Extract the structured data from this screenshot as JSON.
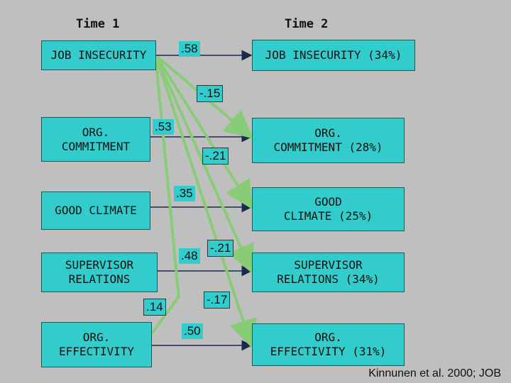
{
  "headers": {
    "time1": "Time 1",
    "time2": "Time 2"
  },
  "time1_boxes": {
    "job_insecurity": "JOB INSECURITY",
    "org_commitment": "ORG.\nCOMMITMENT",
    "good_climate": "GOOD CLIMATE",
    "supervisor_relations": "SUPERVISOR\nRELATIONS",
    "org_effectivity": "ORG.\nEFFECTIVITY"
  },
  "time2_boxes": {
    "job_insecurity": "JOB INSECURITY (34%)",
    "org_commitment": "ORG.\nCOMMITMENT (28%)",
    "good_climate": "GOOD\nCLIMATE (25%)",
    "supervisor_relations": "SUPERVISOR\nRELATIONS (34%)",
    "org_effectivity": "ORG.\nEFFECTIVITY (31%)"
  },
  "coefficients": {
    "ji_ji": ".58",
    "ji_oc": "-.15",
    "oc_oc": ".53",
    "ji_gc": "-.21",
    "gc_gc": ".35",
    "sr_sr": ".48",
    "ji_sr": "-.21",
    "oe_oe_side": ".14",
    "ji_oe": "-.17",
    "oe_oe": ".50"
  },
  "citation": "Kinnunen et al. 2000; JOB",
  "colors": {
    "box_fill": "#33cccc",
    "background": "#bfbfbf",
    "arrow_straight": "#1a2a4a",
    "arrow_cross": "#88cc77"
  }
}
